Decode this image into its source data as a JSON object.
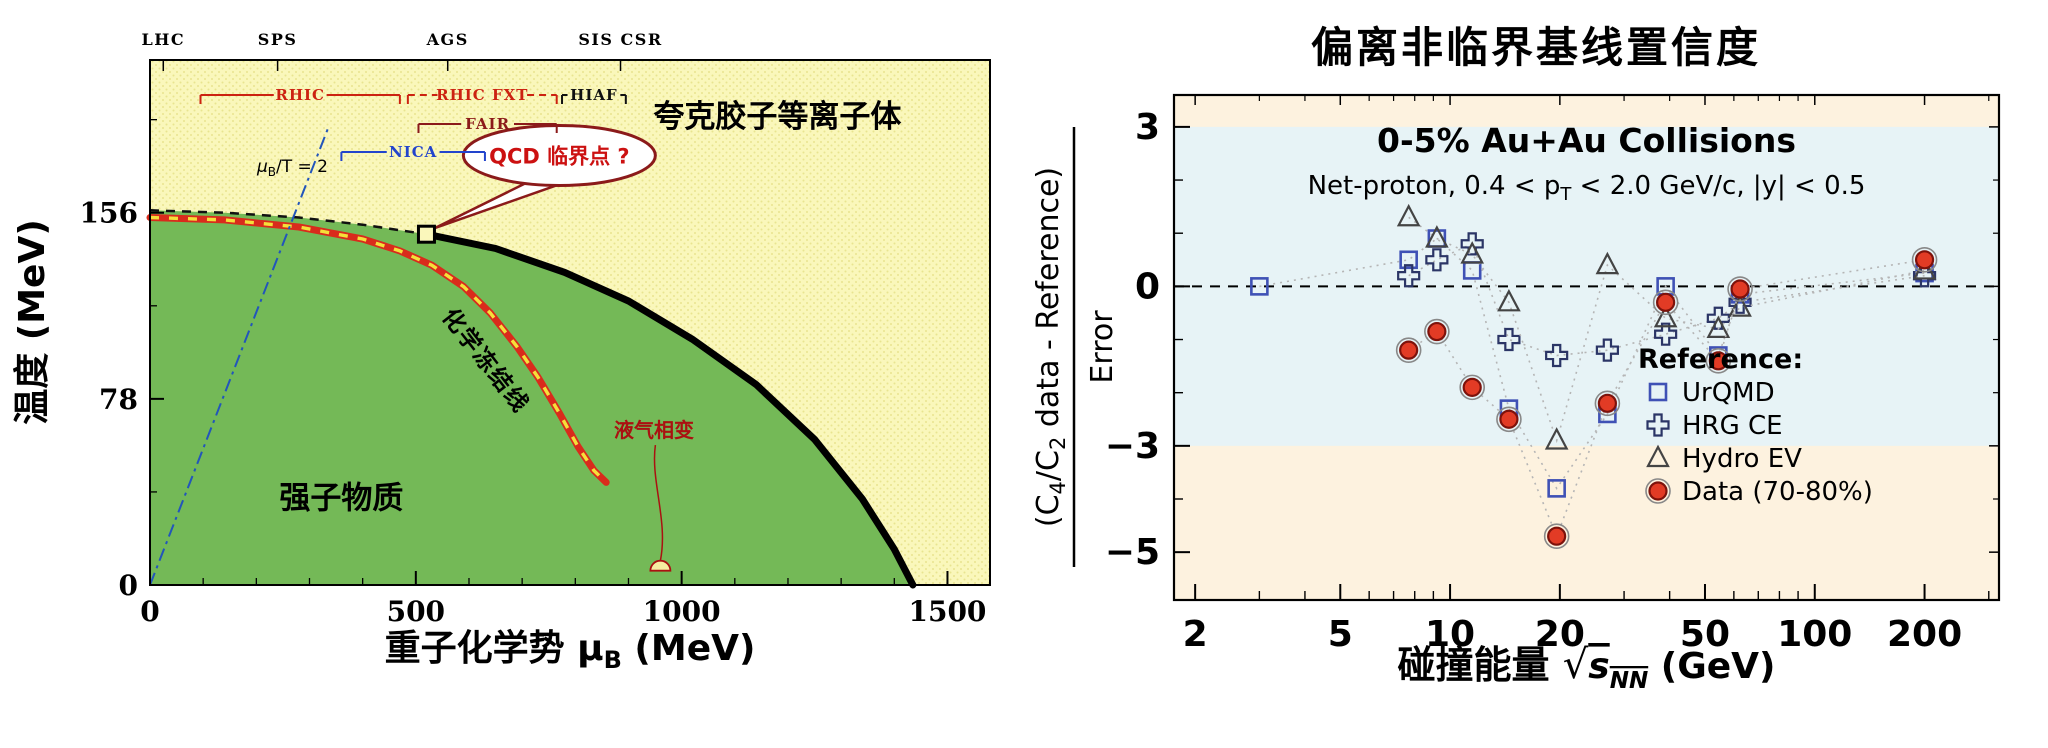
{
  "chart_data": [
    {
      "type": "diagram",
      "xlabel": {
        "prefix": "重子化学势 μ",
        "sub": "B",
        "suffix": " (MeV)"
      },
      "ylabel": "温度 (MeV)",
      "xlim": [
        0,
        1580
      ],
      "ylim": [
        0,
        220
      ],
      "xticks": [
        0,
        500,
        1000,
        1500
      ],
      "xminor_step": 100,
      "yticks": [
        0,
        78,
        156
      ],
      "yminor_step": 39,
      "regions": {
        "qgp_label": "夸克胶子等离子体",
        "hadron_label": "强子物质"
      },
      "labels": {
        "freezeout": "化学冻结线",
        "liquid_gas": "液气相变",
        "critical_callout": "QCD 临界点 ?",
        "mub_prefix": "μ",
        "mub_sub": "B",
        "mub_suffix": "/T = 2"
      },
      "colors": {
        "qgp_fill": "#faf7bb",
        "qgp_dot": "#e9e490",
        "hadron_fill": "#74b957",
        "freezeout": "#d92b1c",
        "freezeout_dash": "#f5e03a",
        "first_order": "#000000",
        "mub_line": "#2255bb",
        "callout_border": "#8b1a1a",
        "callout_text": "#cc1111",
        "liquid_gas_text": "#aa1111"
      },
      "critical_point": {
        "x": 520,
        "y": 147
      },
      "callout_pos": {
        "x": 770,
        "y": 180
      },
      "curves": {
        "crossover": [
          [
            0,
            157
          ],
          [
            140,
            156
          ],
          [
            280,
            154
          ],
          [
            400,
            151
          ],
          [
            520,
            147
          ]
        ],
        "first_order": [
          [
            520,
            147
          ],
          [
            650,
            141
          ],
          [
            780,
            131
          ],
          [
            900,
            119
          ],
          [
            1020,
            103
          ],
          [
            1140,
            84
          ],
          [
            1250,
            61
          ],
          [
            1340,
            36
          ],
          [
            1400,
            15
          ],
          [
            1435,
            0
          ]
        ],
        "freezeout": [
          [
            0,
            154
          ],
          [
            140,
            153
          ],
          [
            280,
            150
          ],
          [
            400,
            145
          ],
          [
            470,
            140
          ],
          [
            530,
            134
          ],
          [
            590,
            125
          ],
          [
            640,
            114
          ],
          [
            690,
            100
          ],
          [
            730,
            87
          ],
          [
            770,
            72
          ],
          [
            805,
            58
          ],
          [
            835,
            48
          ],
          [
            858,
            43
          ]
        ],
        "mub_over_t": [
          [
            0,
            0
          ],
          [
            336,
            192
          ]
        ]
      },
      "freezeout_label_pos": {
        "x": 620,
        "y": 92,
        "angle": 52
      },
      "qgp_label_pos": {
        "x": 1180,
        "y": 192
      },
      "hadron_label_pos": {
        "x": 360,
        "y": 32
      },
      "liquid_gas_pos": {
        "x": 948,
        "y": 62
      },
      "balloon_pos": {
        "x": 960,
        "y": 6
      },
      "mub_label_pos": {
        "x": 268,
        "y": 173
      },
      "facilities": [
        {
          "label": "LHC",
          "x": 25
        },
        {
          "label": "SPS",
          "x": 240
        },
        {
          "label": "AGS",
          "x": 560
        },
        {
          "label": "SIS CSR",
          "x": 885
        }
      ],
      "brackets": [
        {
          "label": "RHIC",
          "x1": 95,
          "x2": 470,
          "level": 0,
          "color": "#cc2211",
          "style": "solid"
        },
        {
          "label": "RHIC FXT",
          "x1": 485,
          "x2": 765,
          "level": 0,
          "color": "#cc2211",
          "style": "dashed"
        },
        {
          "label": "HIAF",
          "x1": 775,
          "x2": 895,
          "level": 0,
          "color": "#111111",
          "style": "solid"
        },
        {
          "label": "FAIR",
          "x1": 505,
          "x2": 765,
          "level": 1,
          "color": "#8b1a1a",
          "style": "solid"
        },
        {
          "label": "NICA",
          "x1": 360,
          "x2": 630,
          "level": 2,
          "color": "#2244cc",
          "style": "solid"
        }
      ]
    },
    {
      "type": "scatter",
      "title": "偏离非临界基线置信度",
      "subtitle1": "0-5% Au+Au Collisions",
      "subtitle2": {
        "pre": "Net-proton, 0.4 < p",
        "sub": "T",
        "post": " < 2.0 GeV/c, |y| < 0.5"
      },
      "xlabel": {
        "pre": "碰撞能量 ",
        "radical": "√",
        "s": "s",
        "sub": "NN",
        "post": " (GeV)"
      },
      "ylabel": {
        "num_pre": "(C",
        "num_sub1": "4",
        "num_mid": "/C",
        "num_sub2": "2",
        "num_post": " data - Reference)",
        "den": "Error"
      },
      "xscale": "log",
      "xlim": [
        1.75,
        320
      ],
      "ylim": [
        -5.9,
        3.6
      ],
      "xticks": [
        2,
        5,
        10,
        20,
        50,
        100,
        200
      ],
      "xminors": [
        3,
        4,
        6,
        7,
        8,
        9,
        30,
        40,
        60,
        70,
        80,
        90,
        300
      ],
      "yticks": [
        3,
        0,
        -3,
        -5
      ],
      "yminors": [
        -4,
        -2,
        -1,
        1,
        2
      ],
      "bands": {
        "inner_lo": -3,
        "inner_hi": 3,
        "inner_color": "#e7f3f6",
        "outer_color": "#fdf2df"
      },
      "zero_line_y": 0,
      "legend": {
        "title": "Reference:"
      },
      "series": [
        {
          "name": "UrQMD",
          "marker": "square",
          "color": "#3f51b5",
          "x": [
            3.0,
            7.7,
            9.2,
            11.5,
            14.5,
            19.6,
            27,
            39,
            54.4,
            62.4,
            200
          ],
          "y": [
            0.0,
            0.5,
            0.9,
            0.3,
            -2.3,
            -3.8,
            -2.4,
            0.0,
            -1.3,
            -0.15,
            0.25
          ]
        },
        {
          "name": "HRG CE",
          "marker": "cross",
          "color": "#2b3566",
          "x": [
            7.7,
            9.2,
            11.5,
            14.5,
            19.6,
            27,
            39,
            54.4,
            62.4,
            200
          ],
          "y": [
            0.2,
            0.5,
            0.8,
            -1.0,
            -1.3,
            -1.2,
            -0.9,
            -0.6,
            -0.3,
            0.2
          ]
        },
        {
          "name": "Hydro EV",
          "marker": "triangle",
          "color": "#444444",
          "x": [
            7.7,
            9.2,
            11.5,
            14.5,
            19.6,
            27,
            39,
            54.4,
            62.4,
            200
          ],
          "y": [
            1.3,
            0.9,
            0.6,
            -0.3,
            -2.9,
            0.4,
            -0.6,
            -0.8,
            -0.4,
            0.3
          ]
        },
        {
          "name": "Data (70-80%)",
          "marker": "circle",
          "color": "#e23b25",
          "x": [
            7.7,
            9.2,
            11.5,
            14.5,
            19.6,
            27,
            39,
            54.4,
            62.4,
            200
          ],
          "y": [
            -1.2,
            -0.85,
            -1.9,
            -2.5,
            -4.7,
            -2.2,
            -0.3,
            -1.4,
            -0.05,
            0.5
          ]
        }
      ]
    }
  ]
}
